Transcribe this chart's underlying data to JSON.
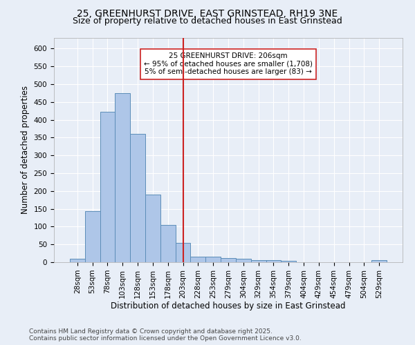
{
  "title_line1": "25, GREENHURST DRIVE, EAST GRINSTEAD, RH19 3NE",
  "title_line2": "Size of property relative to detached houses in East Grinstead",
  "xlabel": "Distribution of detached houses by size in East Grinstead",
  "ylabel": "Number of detached properties",
  "categories": [
    "28sqm",
    "53sqm",
    "78sqm",
    "103sqm",
    "128sqm",
    "153sqm",
    "178sqm",
    "203sqm",
    "228sqm",
    "253sqm",
    "279sqm",
    "304sqm",
    "329sqm",
    "354sqm",
    "379sqm",
    "404sqm",
    "429sqm",
    "454sqm",
    "479sqm",
    "504sqm",
    "529sqm"
  ],
  "values": [
    10,
    143,
    422,
    475,
    360,
    190,
    105,
    55,
    16,
    15,
    12,
    10,
    6,
    5,
    4,
    0,
    0,
    0,
    0,
    0,
    5
  ],
  "bar_color": "#aec6e8",
  "bar_edge_color": "#5b8db8",
  "vline_x_index": 7,
  "vline_color": "#cc2222",
  "annotation_text": "25 GREENHURST DRIVE: 206sqm\n← 95% of detached houses are smaller (1,708)\n5% of semi-detached houses are larger (83) →",
  "annotation_box_color": "#ffffff",
  "annotation_box_edge_color": "#cc2222",
  "ylim": [
    0,
    630
  ],
  "yticks": [
    0,
    50,
    100,
    150,
    200,
    250,
    300,
    350,
    400,
    450,
    500,
    550,
    600
  ],
  "background_color": "#e8eef7",
  "grid_color": "#ffffff",
  "footer_line1": "Contains HM Land Registry data © Crown copyright and database right 2025.",
  "footer_line2": "Contains public sector information licensed under the Open Government Licence v3.0.",
  "title_fontsize": 10,
  "subtitle_fontsize": 9,
  "axis_label_fontsize": 8.5,
  "tick_fontsize": 7.5,
  "annotation_fontsize": 7.5,
  "footer_fontsize": 6.5
}
